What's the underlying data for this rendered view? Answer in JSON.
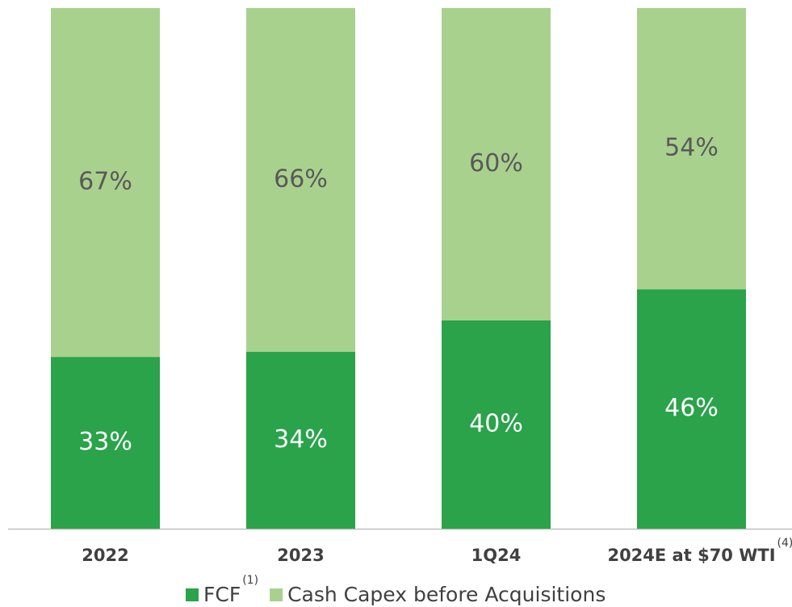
{
  "chart_data": {
    "type": "stacked_bar",
    "categories": [
      "2022",
      "2023",
      "1Q24",
      "2024E at $70 WTI"
    ],
    "category_footnotes": [
      null,
      null,
      null,
      "(4)"
    ],
    "ylim": [
      0,
      100
    ],
    "series": [
      {
        "name": "FCF",
        "note": "(1)",
        "color": "#2aa34a",
        "label_color": "#ffffff",
        "values": [
          33,
          34,
          40,
          46
        ],
        "value_labels": [
          "33%",
          "34%",
          "40%",
          "46%"
        ]
      },
      {
        "name": "Cash Capex before Acquisitions",
        "color": "#a9d18e",
        "label_color": "#595959",
        "values": [
          67,
          66,
          60,
          54
        ],
        "value_labels": [
          "67%",
          "66%",
          "60%",
          "54%"
        ]
      }
    ]
  }
}
